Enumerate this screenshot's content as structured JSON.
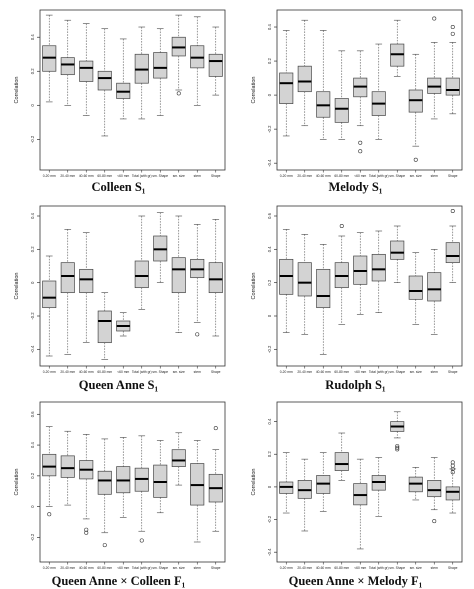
{
  "chart_data": [
    {
      "type": "boxplot",
      "title": "Colleen S₁",
      "ylabel": "Correlation",
      "categories": [
        "0-20 mm",
        "20-40 mm",
        "40-60 mm",
        "60-80 mm",
        "<60 mm",
        "Total (with gr)",
        "sm. Shape",
        "sm. size",
        "stem",
        "Shape"
      ],
      "yticks": [
        -0.2,
        0.0,
        0.2,
        0.4
      ],
      "ytick_labels": [
        "-0.2",
        "0",
        "0.2",
        "0.4"
      ],
      "ylim": [
        -0.38,
        0.56
      ],
      "series": [
        {
          "min": 0.02,
          "q1": 0.2,
          "median": 0.28,
          "q3": 0.35,
          "max": 0.53,
          "outliers": []
        },
        {
          "min": 0.0,
          "q1": 0.18,
          "median": 0.24,
          "q3": 0.28,
          "max": 0.5,
          "outliers": []
        },
        {
          "min": -0.06,
          "q1": 0.14,
          "median": 0.22,
          "q3": 0.26,
          "max": 0.48,
          "outliers": []
        },
        {
          "min": -0.18,
          "q1": 0.09,
          "median": 0.16,
          "q3": 0.2,
          "max": 0.45,
          "outliers": []
        },
        {
          "min": -0.08,
          "q1": 0.04,
          "median": 0.08,
          "q3": 0.13,
          "max": 0.39,
          "outliers": []
        },
        {
          "min": -0.08,
          "q1": 0.13,
          "median": 0.21,
          "q3": 0.3,
          "max": 0.46,
          "outliers": []
        },
        {
          "min": -0.06,
          "q1": 0.16,
          "median": 0.22,
          "q3": 0.31,
          "max": 0.45,
          "outliers": []
        },
        {
          "min": 0.09,
          "q1": 0.29,
          "median": 0.34,
          "q3": 0.4,
          "max": 0.53,
          "outliers": [
            0.07
          ]
        },
        {
          "min": 0.0,
          "q1": 0.22,
          "median": 0.28,
          "q3": 0.35,
          "max": 0.52,
          "outliers": []
        },
        {
          "min": 0.06,
          "q1": 0.17,
          "median": 0.26,
          "q3": 0.3,
          "max": 0.46,
          "outliers": []
        }
      ]
    },
    {
      "type": "boxplot",
      "title": "Melody S₁",
      "ylabel": "Correlation",
      "categories": [
        "0-20 mm",
        "20-40 mm",
        "40-60 mm",
        "60-80 mm",
        "<60 mm",
        "Total (with gr)",
        "sm. Shape",
        "sm. size",
        "stem",
        "Shape"
      ],
      "yticks": [
        -0.4,
        -0.2,
        0.0,
        0.2,
        0.4
      ],
      "ytick_labels": [
        "-0.4",
        "-0.2",
        "0",
        "0.2",
        "0.4"
      ],
      "ylim": [
        -0.44,
        0.5
      ],
      "series": [
        {
          "min": -0.24,
          "q1": -0.05,
          "median": 0.07,
          "q3": 0.13,
          "max": 0.38,
          "outliers": []
        },
        {
          "min": -0.18,
          "q1": 0.02,
          "median": 0.08,
          "q3": 0.17,
          "max": 0.44,
          "outliers": []
        },
        {
          "min": -0.26,
          "q1": -0.13,
          "median": -0.06,
          "q3": 0.02,
          "max": 0.38,
          "outliers": []
        },
        {
          "min": -0.26,
          "q1": -0.16,
          "median": -0.08,
          "q3": -0.02,
          "max": 0.26,
          "outliers": []
        },
        {
          "min": -0.18,
          "q1": -0.01,
          "median": 0.05,
          "q3": 0.1,
          "max": 0.26,
          "outliers": [
            -0.28,
            -0.33
          ]
        },
        {
          "min": -0.26,
          "q1": -0.12,
          "median": -0.05,
          "q3": 0.02,
          "max": 0.3,
          "outliers": []
        },
        {
          "min": 0.11,
          "q1": 0.17,
          "median": 0.24,
          "q3": 0.3,
          "max": 0.44,
          "outliers": []
        },
        {
          "min": -0.3,
          "q1": -0.1,
          "median": -0.03,
          "q3": 0.03,
          "max": 0.24,
          "outliers": [
            -0.38
          ]
        },
        {
          "min": -0.14,
          "q1": 0.01,
          "median": 0.05,
          "q3": 0.1,
          "max": 0.31,
          "outliers": [
            0.45
          ]
        },
        {
          "min": -0.11,
          "q1": 0.0,
          "median": 0.03,
          "q3": 0.1,
          "max": 0.31,
          "outliers": [
            0.4,
            0.36
          ]
        }
      ]
    },
    {
      "type": "boxplot",
      "title": "Queen Anne S₁",
      "ylabel": "Correlation",
      "categories": [
        "0-20 mm",
        "20-40 mm",
        "40-60 mm",
        "60-80 mm",
        "<60 mm",
        "Total (with gr)",
        "sm. Shape",
        "sm. size",
        "stem",
        "Shape"
      ],
      "yticks": [
        -0.4,
        -0.2,
        0.0,
        0.2,
        0.4
      ],
      "ytick_labels": [
        "-0.4",
        "-0.2",
        "0",
        "0.2",
        "0.4"
      ],
      "ylim": [
        -0.5,
        0.46
      ],
      "series": [
        {
          "min": -0.44,
          "q1": -0.15,
          "median": -0.09,
          "q3": 0.01,
          "max": 0.16,
          "outliers": []
        },
        {
          "min": -0.43,
          "q1": -0.06,
          "median": 0.04,
          "q3": 0.12,
          "max": 0.32,
          "outliers": []
        },
        {
          "min": -0.36,
          "q1": -0.06,
          "median": 0.02,
          "q3": 0.08,
          "max": 0.3,
          "outliers": []
        },
        {
          "min": -0.46,
          "q1": -0.36,
          "median": -0.23,
          "q3": -0.17,
          "max": -0.06,
          "outliers": []
        },
        {
          "min": -0.32,
          "q1": -0.29,
          "median": -0.26,
          "q3": -0.23,
          "max": -0.18,
          "outliers": []
        },
        {
          "min": -0.16,
          "q1": -0.03,
          "median": 0.04,
          "q3": 0.13,
          "max": 0.4,
          "outliers": []
        },
        {
          "min": 0.0,
          "q1": 0.13,
          "median": 0.2,
          "q3": 0.28,
          "max": 0.42,
          "outliers": []
        },
        {
          "min": -0.3,
          "q1": -0.06,
          "median": 0.08,
          "q3": 0.15,
          "max": 0.4,
          "outliers": []
        },
        {
          "min": -0.24,
          "q1": 0.03,
          "median": 0.08,
          "q3": 0.14,
          "max": 0.35,
          "outliers": [
            -0.31
          ]
        },
        {
          "min": -0.32,
          "q1": -0.06,
          "median": 0.02,
          "q3": 0.12,
          "max": 0.38,
          "outliers": []
        }
      ]
    },
    {
      "type": "boxplot",
      "title": "Rudolph S₁",
      "ylabel": "Correlation",
      "categories": [
        "0-20 mm",
        "20-40 mm",
        "40-60 mm",
        "60-80 mm",
        "<60 mm",
        "Total (with gr)",
        "sm. Shape",
        "sm. size",
        "stem",
        "Shape"
      ],
      "yticks": [
        -0.2,
        0.0,
        0.2,
        0.4,
        0.6
      ],
      "ytick_labels": [
        "-0.2",
        "0",
        "0.2",
        "0.4",
        "0.6"
      ],
      "ylim": [
        -0.3,
        0.66
      ],
      "series": [
        {
          "min": -0.1,
          "q1": 0.13,
          "median": 0.24,
          "q3": 0.34,
          "max": 0.52,
          "outliers": []
        },
        {
          "min": -0.11,
          "q1": 0.12,
          "median": 0.2,
          "q3": 0.32,
          "max": 0.49,
          "outliers": []
        },
        {
          "min": -0.23,
          "q1": 0.05,
          "median": 0.12,
          "q3": 0.28,
          "max": 0.43,
          "outliers": []
        },
        {
          "min": -0.05,
          "q1": 0.17,
          "median": 0.24,
          "q3": 0.32,
          "max": 0.48,
          "outliers": [
            0.54
          ]
        },
        {
          "min": 0.01,
          "q1": 0.19,
          "median": 0.27,
          "q3": 0.36,
          "max": 0.5,
          "outliers": []
        },
        {
          "min": 0.02,
          "q1": 0.21,
          "median": 0.28,
          "q3": 0.37,
          "max": 0.51,
          "outliers": []
        },
        {
          "min": 0.2,
          "q1": 0.34,
          "median": 0.38,
          "q3": 0.45,
          "max": 0.54,
          "outliers": []
        },
        {
          "min": -0.05,
          "q1": 0.1,
          "median": 0.15,
          "q3": 0.24,
          "max": 0.38,
          "outliers": []
        },
        {
          "min": -0.11,
          "q1": 0.09,
          "median": 0.16,
          "q3": 0.26,
          "max": 0.4,
          "outliers": []
        },
        {
          "min": 0.2,
          "q1": 0.32,
          "median": 0.36,
          "q3": 0.44,
          "max": 0.54,
          "outliers": [
            0.63
          ]
        }
      ]
    },
    {
      "type": "boxplot",
      "title": "Queen Anne × Colleen F₁",
      "ylabel": "Correlation",
      "categories": [
        "0-20 mm",
        "20-40 mm",
        "40-60 mm",
        "60-80 mm",
        "<60 mm",
        "Total (with gr)",
        "sm. Shape",
        "sm. size",
        "stem",
        "Shape"
      ],
      "yticks": [
        -0.2,
        0.0,
        0.2,
        0.4,
        0.6
      ],
      "ytick_labels": [
        "-0.2",
        "0",
        "0.2",
        "0.4",
        "0.6"
      ],
      "ylim": [
        -0.36,
        0.68
      ],
      "series": [
        {
          "min": 0.0,
          "q1": 0.2,
          "median": 0.26,
          "q3": 0.34,
          "max": 0.52,
          "outliers": [
            -0.05
          ]
        },
        {
          "min": 0.01,
          "q1": 0.19,
          "median": 0.25,
          "q3": 0.33,
          "max": 0.49,
          "outliers": []
        },
        {
          "min": -0.08,
          "q1": 0.18,
          "median": 0.24,
          "q3": 0.3,
          "max": 0.47,
          "outliers": [
            -0.15,
            -0.17
          ]
        },
        {
          "min": -0.17,
          "q1": 0.08,
          "median": 0.17,
          "q3": 0.23,
          "max": 0.44,
          "outliers": [
            -0.25
          ]
        },
        {
          "min": -0.07,
          "q1": 0.09,
          "median": 0.17,
          "q3": 0.26,
          "max": 0.45,
          "outliers": []
        },
        {
          "min": -0.16,
          "q1": 0.1,
          "median": 0.18,
          "q3": 0.25,
          "max": 0.46,
          "outliers": [
            -0.22
          ]
        },
        {
          "min": -0.04,
          "q1": 0.06,
          "median": 0.16,
          "q3": 0.27,
          "max": 0.43,
          "outliers": []
        },
        {
          "min": 0.14,
          "q1": 0.26,
          "median": 0.3,
          "q3": 0.37,
          "max": 0.48,
          "outliers": []
        },
        {
          "min": -0.23,
          "q1": 0.01,
          "median": 0.14,
          "q3": 0.28,
          "max": 0.43,
          "outliers": []
        },
        {
          "min": -0.16,
          "q1": 0.03,
          "median": 0.12,
          "q3": 0.21,
          "max": 0.37,
          "outliers": [
            0.51
          ]
        }
      ]
    },
    {
      "type": "boxplot",
      "title": "Queen Anne × Melody F₁",
      "ylabel": "Correlation",
      "categories": [
        "0-20 mm",
        "20-40 mm",
        "40-60 mm",
        "60-80 mm",
        "<60 mm",
        "Total (with gr)",
        "sm. Shape",
        "sm. size",
        "stem",
        "Shape"
      ],
      "yticks": [
        -0.4,
        -0.2,
        0.0,
        0.2,
        0.4
      ],
      "ytick_labels": [
        "-0.4",
        "-0.2",
        "0",
        "0.2",
        "0.4"
      ],
      "ylim": [
        -0.46,
        0.52
      ],
      "series": [
        {
          "min": -0.16,
          "q1": -0.04,
          "median": 0.0,
          "q3": 0.03,
          "max": 0.21,
          "outliers": []
        },
        {
          "min": -0.27,
          "q1": -0.07,
          "median": -0.02,
          "q3": 0.04,
          "max": 0.17,
          "outliers": []
        },
        {
          "min": -0.15,
          "q1": -0.04,
          "median": 0.02,
          "q3": 0.07,
          "max": 0.21,
          "outliers": []
        },
        {
          "min": 0.04,
          "q1": 0.1,
          "median": 0.14,
          "q3": 0.21,
          "max": 0.33,
          "outliers": []
        },
        {
          "min": -0.38,
          "q1": -0.11,
          "median": -0.05,
          "q3": 0.02,
          "max": 0.17,
          "outliers": []
        },
        {
          "min": -0.18,
          "q1": -0.02,
          "median": 0.03,
          "q3": 0.07,
          "max": 0.18,
          "outliers": []
        },
        {
          "min": 0.3,
          "q1": 0.34,
          "median": 0.37,
          "q3": 0.4,
          "max": 0.46,
          "outliers": [
            0.25,
            0.24,
            0.23
          ]
        },
        {
          "min": -0.08,
          "q1": -0.03,
          "median": 0.02,
          "q3": 0.06,
          "max": 0.12,
          "outliers": []
        },
        {
          "min": -0.14,
          "q1": -0.06,
          "median": -0.02,
          "q3": 0.04,
          "max": 0.18,
          "outliers": [
            -0.21
          ]
        },
        {
          "min": -0.16,
          "q1": -0.08,
          "median": -0.03,
          "q3": 0.0,
          "max": 0.11,
          "outliers": [
            0.15,
            0.13,
            0.11,
            0.09
          ]
        }
      ]
    }
  ]
}
